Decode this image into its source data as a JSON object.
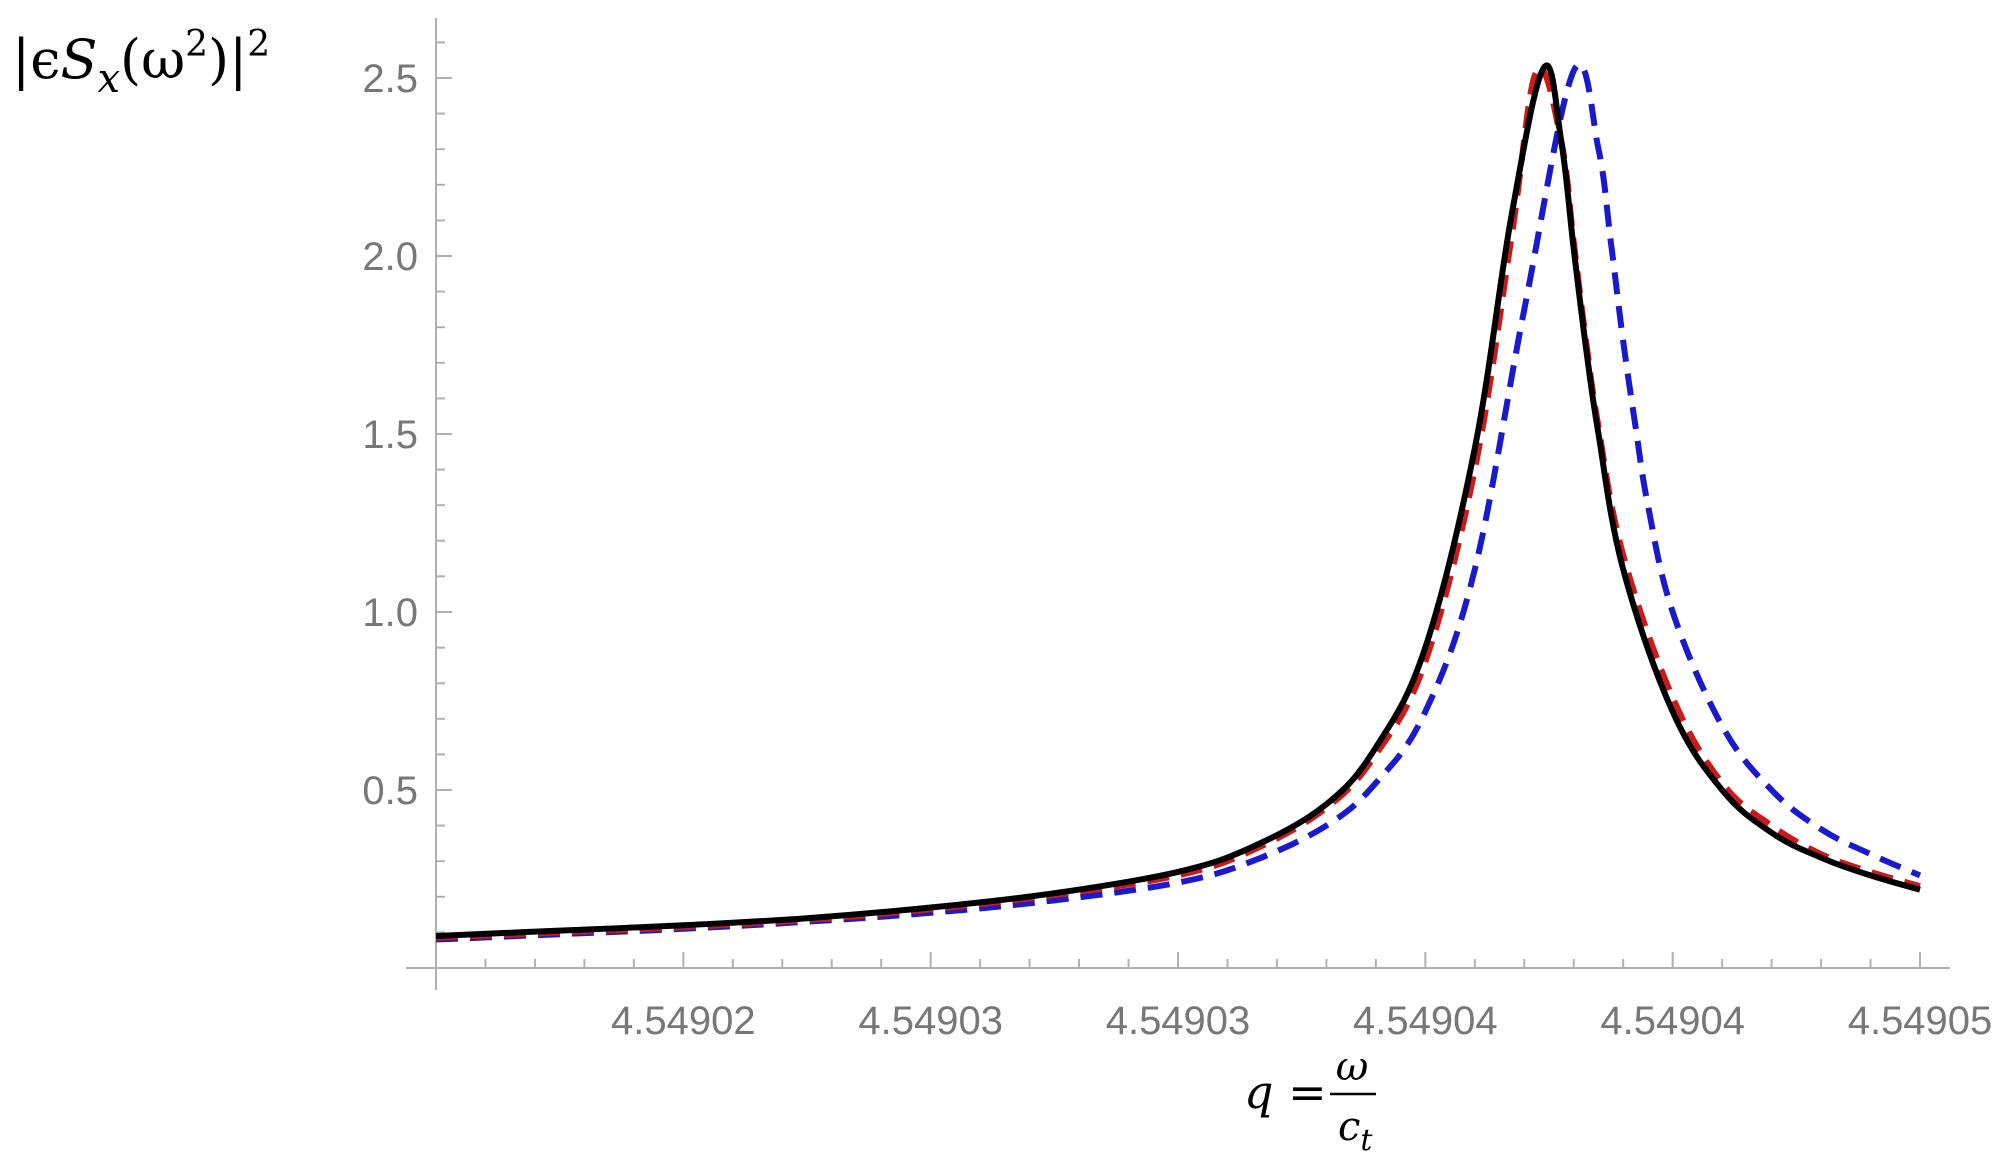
{
  "chart_data": {
    "type": "line",
    "title": "",
    "ylabel": {
      "lhs": "|ϵ",
      "s": "S",
      "sub_x": "x",
      "mid": "(ω",
      "sup_inner": "2",
      "close": ")|",
      "sup_outer": "2"
    },
    "xlabel": {
      "lhs": "q =",
      "numerator": "ω",
      "denominator": "c",
      "denominator_sub": "t"
    },
    "xlim": [
      0.0,
      6.0
    ],
    "ylim": [
      0.0,
      2.62
    ],
    "x_ticks": [
      {
        "value": 1,
        "label": "4.54902"
      },
      {
        "value": 2,
        "label": "4.54903"
      },
      {
        "value": 3,
        "label": "4.54903"
      },
      {
        "value": 4,
        "label": "4.54904"
      },
      {
        "value": 5,
        "label": "4.54904"
      },
      {
        "value": 6,
        "label": "4.54905"
      }
    ],
    "y_ticks": [
      {
        "value": 0.5,
        "label": "0.5"
      },
      {
        "value": 1.0,
        "label": "1.0"
      },
      {
        "value": 1.5,
        "label": "1.5"
      },
      {
        "value": 2.0,
        "label": "2.0"
      },
      {
        "value": 2.5,
        "label": "2.5"
      }
    ],
    "grid": false,
    "series": [
      {
        "color": "#1a1acc",
        "style": "dashed",
        "x": [
          0,
          0.5,
          1.0,
          1.5,
          2.0,
          2.5,
          3.0,
          3.3,
          3.6,
          3.8,
          4.0,
          4.2,
          4.4,
          4.6,
          4.7,
          4.75,
          4.8,
          4.85,
          4.9,
          5.0,
          5.2,
          5.4,
          5.6,
          5.8,
          6.0
        ],
        "y": [
          0.08,
          0.095,
          0.11,
          0.13,
          0.155,
          0.19,
          0.24,
          0.3,
          0.4,
          0.52,
          0.72,
          1.12,
          1.85,
          2.52,
          2.3,
          2.04,
          1.76,
          1.52,
          1.3,
          1.0,
          0.68,
          0.5,
          0.39,
          0.32,
          0.26
        ]
      },
      {
        "color": "#cc1a1a",
        "style": "dashed",
        "x": [
          0,
          0.5,
          1.0,
          1.5,
          2.0,
          2.5,
          3.0,
          3.3,
          3.6,
          3.8,
          4.0,
          4.2,
          4.35,
          4.45,
          4.55,
          4.6,
          4.65,
          4.7,
          4.8,
          5.0,
          5.2,
          5.4,
          5.6,
          5.8,
          6.0
        ],
        "y": [
          0.085,
          0.1,
          0.115,
          0.135,
          0.165,
          0.205,
          0.26,
          0.33,
          0.45,
          0.6,
          0.86,
          1.4,
          2.06,
          2.52,
          2.32,
          2.04,
          1.76,
          1.52,
          1.16,
          0.76,
          0.52,
          0.4,
          0.32,
          0.27,
          0.23
        ]
      },
      {
        "color": "#000000",
        "style": "solid",
        "x": [
          0,
          0.5,
          1.0,
          1.5,
          2.0,
          2.5,
          3.0,
          3.3,
          3.6,
          3.8,
          4.0,
          4.2,
          4.35,
          4.48,
          4.55,
          4.6,
          4.65,
          4.7,
          4.8,
          5.0,
          5.2,
          5.4,
          5.6,
          5.8,
          6.0
        ],
        "y": [
          0.09,
          0.105,
          0.12,
          0.14,
          0.17,
          0.21,
          0.27,
          0.34,
          0.46,
          0.62,
          0.9,
          1.46,
          2.12,
          2.53,
          2.32,
          2.02,
          1.74,
          1.5,
          1.12,
          0.72,
          0.5,
          0.38,
          0.31,
          0.26,
          0.22
        ]
      }
    ]
  }
}
